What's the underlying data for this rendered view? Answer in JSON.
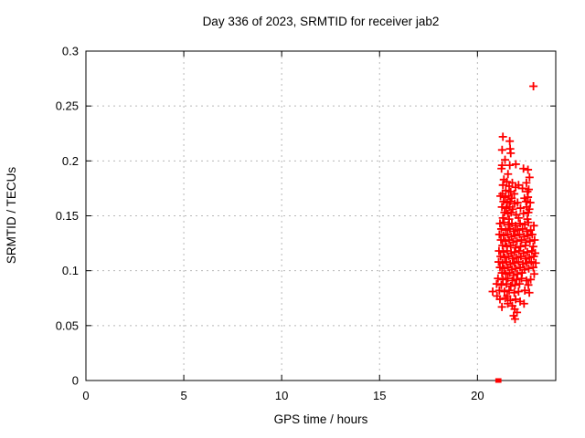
{
  "chart_data": {
    "type": "scatter",
    "title": "Day 336 of 2023, SRMTID for receiver jab2",
    "xlabel": "GPS time / hours",
    "ylabel": "SRMTID / TECUs",
    "xlim": [
      0,
      24
    ],
    "ylim": [
      0,
      0.3
    ],
    "xticks": [
      0,
      5,
      10,
      15,
      20
    ],
    "xtick_labels": [
      "0",
      "5",
      "10",
      "15",
      "20"
    ],
    "yticks": [
      0,
      0.05,
      0.1,
      0.15,
      0.2,
      0.25,
      0.3
    ],
    "ytick_labels": [
      "0",
      "0.05",
      "0.1",
      "0.15",
      "0.2",
      "0.25",
      "0.3"
    ],
    "grid": true,
    "legend": "none",
    "marker": "plus",
    "series_name": "SRMTID",
    "points": [
      [
        21.3,
        0.222
      ],
      [
        21.65,
        0.218
      ],
      [
        21.26,
        0.21
      ],
      [
        21.67,
        0.211
      ],
      [
        21.7,
        0.207
      ],
      [
        21.41,
        0.201
      ],
      [
        21.26,
        0.196
      ],
      [
        21.65,
        0.196
      ],
      [
        21.96,
        0.197
      ],
      [
        21.23,
        0.193
      ],
      [
        22.35,
        0.193
      ],
      [
        22.58,
        0.192
      ],
      [
        21.56,
        0.188
      ],
      [
        22.66,
        0.185
      ],
      [
        21.35,
        0.183
      ],
      [
        21.5,
        0.181
      ],
      [
        21.78,
        0.18
      ],
      [
        22.5,
        0.18
      ],
      [
        21.3,
        0.178
      ],
      [
        21.62,
        0.177
      ],
      [
        21.95,
        0.176
      ],
      [
        22.1,
        0.178
      ],
      [
        22.3,
        0.175
      ],
      [
        21.45,
        0.173
      ],
      [
        21.7,
        0.172
      ],
      [
        22.55,
        0.172
      ],
      [
        21.28,
        0.17
      ],
      [
        21.88,
        0.17
      ],
      [
        22.62,
        0.174
      ],
      [
        21.18,
        0.168
      ],
      [
        21.42,
        0.167
      ],
      [
        21.6,
        0.168
      ],
      [
        21.75,
        0.166
      ],
      [
        22.4,
        0.166
      ],
      [
        22.58,
        0.167
      ],
      [
        21.33,
        0.163
      ],
      [
        21.52,
        0.162
      ],
      [
        21.68,
        0.163
      ],
      [
        21.9,
        0.161
      ],
      [
        22.05,
        0.162
      ],
      [
        22.48,
        0.163
      ],
      [
        22.7,
        0.162
      ],
      [
        21.25,
        0.158
      ],
      [
        21.47,
        0.157
      ],
      [
        21.63,
        0.158
      ],
      [
        21.8,
        0.156
      ],
      [
        22.2,
        0.157
      ],
      [
        22.52,
        0.158
      ],
      [
        22.65,
        0.156
      ],
      [
        21.38,
        0.153
      ],
      [
        21.55,
        0.152
      ],
      [
        21.72,
        0.153
      ],
      [
        21.98,
        0.151
      ],
      [
        22.35,
        0.152
      ],
      [
        22.6,
        0.153
      ],
      [
        21.3,
        0.148
      ],
      [
        21.62,
        0.147
      ],
      [
        22.1,
        0.148
      ],
      [
        22.55,
        0.147
      ],
      [
        21.15,
        0.143
      ],
      [
        21.36,
        0.144
      ],
      [
        21.58,
        0.142
      ],
      [
        21.76,
        0.143
      ],
      [
        21.95,
        0.141
      ],
      [
        22.18,
        0.143
      ],
      [
        22.42,
        0.142
      ],
      [
        22.6,
        0.144
      ],
      [
        22.88,
        0.141
      ],
      [
        21.22,
        0.138
      ],
      [
        21.45,
        0.137
      ],
      [
        21.66,
        0.138
      ],
      [
        21.85,
        0.136
      ],
      [
        22.05,
        0.137
      ],
      [
        22.3,
        0.138
      ],
      [
        22.52,
        0.136
      ],
      [
        22.72,
        0.137
      ],
      [
        21.12,
        0.133
      ],
      [
        21.33,
        0.132
      ],
      [
        21.55,
        0.133
      ],
      [
        21.73,
        0.131
      ],
      [
        21.92,
        0.132
      ],
      [
        22.15,
        0.133
      ],
      [
        22.38,
        0.131
      ],
      [
        22.58,
        0.132
      ],
      [
        22.8,
        0.133
      ],
      [
        21.2,
        0.128
      ],
      [
        21.42,
        0.127
      ],
      [
        21.62,
        0.128
      ],
      [
        21.82,
        0.126
      ],
      [
        22.02,
        0.127
      ],
      [
        22.25,
        0.128
      ],
      [
        22.48,
        0.126
      ],
      [
        22.68,
        0.127
      ],
      [
        22.92,
        0.128
      ],
      [
        21.28,
        0.123
      ],
      [
        21.5,
        0.122
      ],
      [
        21.7,
        0.123
      ],
      [
        21.95,
        0.121
      ],
      [
        22.2,
        0.122
      ],
      [
        22.45,
        0.123
      ],
      [
        22.85,
        0.122
      ],
      [
        21.1,
        0.118
      ],
      [
        21.32,
        0.117
      ],
      [
        21.52,
        0.118
      ],
      [
        21.72,
        0.116
      ],
      [
        21.9,
        0.117
      ],
      [
        22.12,
        0.118
      ],
      [
        22.35,
        0.116
      ],
      [
        22.55,
        0.117
      ],
      [
        22.78,
        0.118
      ],
      [
        22.95,
        0.116
      ],
      [
        21.18,
        0.113
      ],
      [
        21.4,
        0.112
      ],
      [
        21.6,
        0.113
      ],
      [
        21.8,
        0.111
      ],
      [
        22.0,
        0.112
      ],
      [
        22.22,
        0.113
      ],
      [
        22.45,
        0.111
      ],
      [
        22.65,
        0.112
      ],
      [
        22.88,
        0.113
      ],
      [
        21.08,
        0.108
      ],
      [
        21.28,
        0.107
      ],
      [
        21.48,
        0.108
      ],
      [
        21.68,
        0.106
      ],
      [
        21.88,
        0.107
      ],
      [
        22.1,
        0.108
      ],
      [
        22.32,
        0.106
      ],
      [
        22.52,
        0.107
      ],
      [
        22.75,
        0.108
      ],
      [
        22.98,
        0.107
      ],
      [
        21.15,
        0.103
      ],
      [
        21.36,
        0.102
      ],
      [
        21.56,
        0.103
      ],
      [
        21.76,
        0.101
      ],
      [
        21.96,
        0.102
      ],
      [
        22.18,
        0.103
      ],
      [
        22.4,
        0.101
      ],
      [
        22.62,
        0.102
      ],
      [
        22.85,
        0.103
      ],
      [
        21.25,
        0.098
      ],
      [
        21.45,
        0.097
      ],
      [
        21.65,
        0.098
      ],
      [
        21.85,
        0.096
      ],
      [
        22.05,
        0.097
      ],
      [
        22.28,
        0.098
      ],
      [
        22.9,
        0.097
      ],
      [
        21.05,
        0.093
      ],
      [
        21.3,
        0.092
      ],
      [
        21.55,
        0.093
      ],
      [
        21.78,
        0.091
      ],
      [
        22.0,
        0.092
      ],
      [
        22.25,
        0.093
      ],
      [
        22.5,
        0.091
      ],
      [
        22.72,
        0.092
      ],
      [
        20.98,
        0.088
      ],
      [
        21.22,
        0.087
      ],
      [
        21.48,
        0.088
      ],
      [
        21.7,
        0.086
      ],
      [
        21.92,
        0.087
      ],
      [
        22.15,
        0.088
      ],
      [
        22.6,
        0.087
      ],
      [
        20.78,
        0.081
      ],
      [
        21.12,
        0.082
      ],
      [
        21.38,
        0.081
      ],
      [
        21.62,
        0.082
      ],
      [
        21.88,
        0.08
      ],
      [
        22.1,
        0.081
      ],
      [
        22.42,
        0.082
      ],
      [
        22.65,
        0.08
      ],
      [
        21.0,
        0.077
      ],
      [
        21.52,
        0.077
      ],
      [
        21.15,
        0.074
      ],
      [
        21.42,
        0.075
      ],
      [
        21.68,
        0.073
      ],
      [
        21.95,
        0.074
      ],
      [
        22.18,
        0.072
      ],
      [
        22.38,
        0.07
      ],
      [
        21.55,
        0.07
      ],
      [
        21.78,
        0.068
      ],
      [
        21.25,
        0.067
      ],
      [
        21.9,
        0.065
      ],
      [
        22.02,
        0.062
      ],
      [
        21.85,
        0.059
      ],
      [
        21.92,
        0.056
      ],
      [
        22.86,
        0.268
      ]
    ],
    "zero_points": [
      [
        21.03,
        0.0
      ],
      [
        21.07,
        0.0
      ],
      [
        21.11,
        0.0
      ]
    ]
  },
  "colors": {
    "marker": "#ff0000",
    "axis": "#000000",
    "grid": "#b8b8b8",
    "background": "#ffffff",
    "text": "#000000"
  }
}
